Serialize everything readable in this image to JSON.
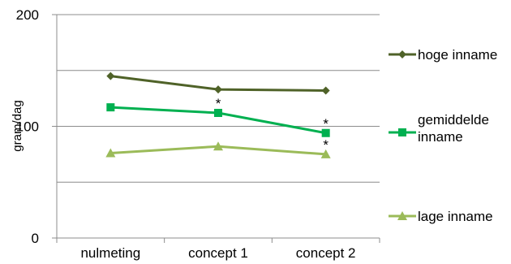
{
  "chart_data": {
    "type": "line",
    "title": "",
    "xlabel": "",
    "ylabel": "gram/dag",
    "ylim": [
      0,
      200
    ],
    "yticks": [
      0,
      100,
      200
    ],
    "grid": true,
    "legend_position": "right",
    "categories": [
      "nulmeting",
      "concept 1",
      "concept 2"
    ],
    "series": [
      {
        "name": "hoge inname",
        "values": [
          145,
          133,
          132
        ],
        "color": "#4f6228",
        "marker": "diamond"
      },
      {
        "name": "gemiddelde inname",
        "values": [
          117,
          112,
          94
        ],
        "color": "#00b050",
        "marker": "square"
      },
      {
        "name": "lage inname",
        "values": [
          76,
          82,
          75
        ],
        "color": "#9bbb59",
        "marker": "triangle"
      }
    ],
    "annotations": [
      {
        "text": "*",
        "series": "gemiddelde inname",
        "category": "concept 1"
      },
      {
        "text": "*",
        "series": "gemiddelde inname",
        "category": "concept 2"
      },
      {
        "text": "*",
        "series": "lage inname",
        "category": "concept 2"
      }
    ]
  }
}
